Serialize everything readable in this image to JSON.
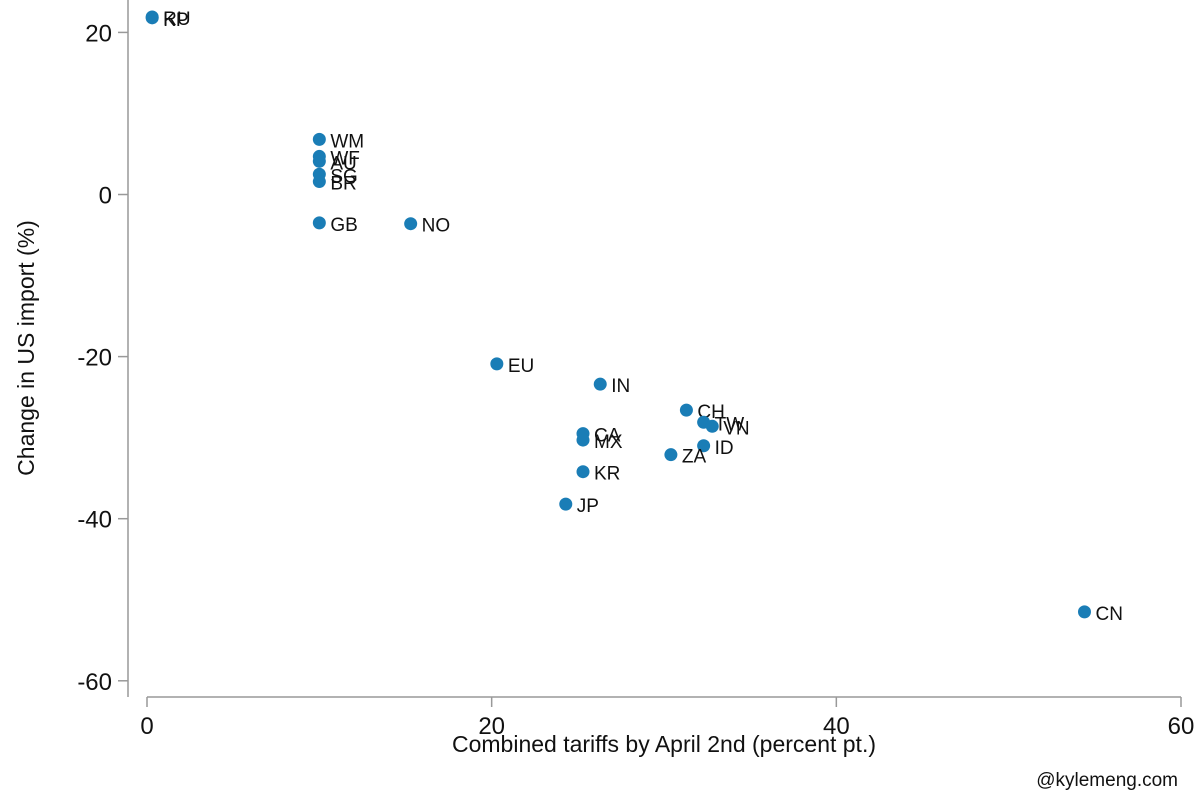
{
  "chart_data": {
    "type": "scatter",
    "xlabel": "Combined tariffs by April 2nd (percent pt.)",
    "ylabel": "Change in US import (%)",
    "credit": "@kylemeng.com",
    "color": "#1a7db6",
    "labels": [
      "RU",
      "KP",
      "WM",
      "WF",
      "AU",
      "SG",
      "BR",
      "GB",
      "NO",
      "EU",
      "IN",
      "CH",
      "TW",
      "VN",
      "CA",
      "MX",
      "ID",
      "ZA",
      "KR",
      "JP",
      "CN"
    ],
    "x": [
      0.3,
      0.3,
      10,
      10,
      10,
      10,
      10,
      10,
      15.3,
      20.3,
      26.3,
      31.3,
      32.3,
      32.8,
      25.3,
      25.3,
      32.3,
      30.4,
      25.3,
      24.3,
      54.4
    ],
    "y": [
      21.9,
      21.8,
      6.8,
      4.7,
      4.1,
      2.5,
      1.6,
      -3.5,
      -3.6,
      -20.9,
      -23.4,
      -26.6,
      -28.1,
      -28.6,
      -29.5,
      -30.3,
      -31.0,
      -32.1,
      -34.2,
      -38.2,
      -51.5
    ],
    "xlim": [
      0,
      60
    ],
    "ylim": [
      -62,
      24
    ],
    "xticks": [
      0,
      20,
      40,
      60
    ],
    "yticks": [
      -60,
      -40,
      -20,
      0,
      20
    ],
    "grid": false
  }
}
